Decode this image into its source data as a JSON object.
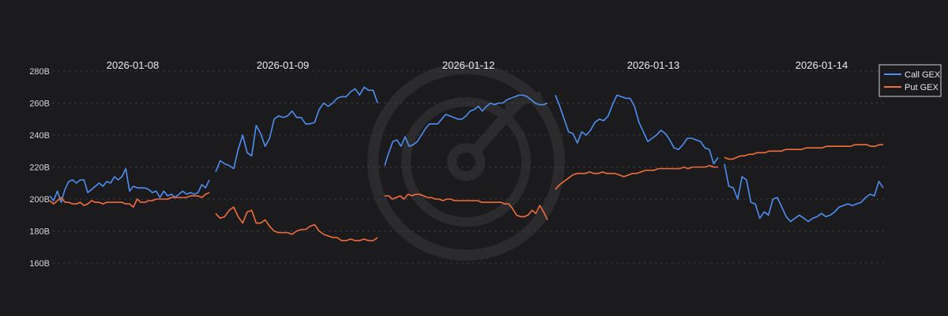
{
  "chart_data": {
    "type": "line",
    "xlabel": "",
    "ylabel": "",
    "ylim": [
      160,
      280
    ],
    "yticks": [
      160,
      180,
      200,
      220,
      240,
      260,
      280
    ],
    "ytick_labels": [
      "160B",
      "180B",
      "200B",
      "220B",
      "240B",
      "260B",
      "280B"
    ],
    "grid": "horizontal dashed",
    "legend": "top-right",
    "days": [
      {
        "label": "2026-01-08",
        "series": [
          {
            "name": "Call GEX",
            "values": [
              202,
              199,
              205,
              198,
              206,
              211,
              212,
              210,
              212,
              212,
              204,
              206,
              208,
              210,
              208,
              211,
              210,
              214,
              212,
              214,
              219,
              205,
              208,
              207,
              207,
              207,
              206,
              204,
              205,
              201,
              205,
              202,
              203,
              201,
              203,
              205,
              203,
              204,
              203,
              204,
              209,
              207,
              212
            ]
          },
          {
            "name": "Put GEX",
            "values": [
              199,
              197,
              199,
              201,
              198,
              198,
              197,
              197,
              198,
              196,
              197,
              199,
              198,
              198,
              197,
              198,
              198,
              198,
              198,
              198,
              197,
              197,
              195,
              200,
              198,
              198,
              199,
              199,
              200,
              200,
              200,
              200,
              201,
              201,
              201,
              201,
              201,
              202,
              202,
              202,
              201,
              203,
              204
            ]
          }
        ]
      },
      {
        "label": "2026-01-09",
        "series": [
          {
            "name": "Call GEX",
            "values": [
              217,
              224,
              222,
              221,
              219,
              231,
              240,
              229,
              227,
              246,
              241,
              233,
              238,
              250,
              252,
              251,
              252,
              255,
              251,
              251,
              247,
              247,
              248,
              256,
              260,
              258,
              260,
              263,
              264,
              264,
              267,
              269,
              265,
              270,
              268,
              268,
              260
            ]
          },
          {
            "name": "Put GEX",
            "values": [
              191,
              188,
              189,
              193,
              195,
              189,
              185,
              192,
              193,
              185,
              185,
              187,
              183,
              180,
              179,
              179,
              179,
              178,
              180,
              181,
              181,
              183,
              184,
              180,
              178,
              177,
              176,
              176,
              174,
              174,
              175,
              174,
              174,
              175,
              174,
              174,
              176
            ]
          }
        ]
      },
      {
        "label": "2026-01-12",
        "series": [
          {
            "name": "Call GEX",
            "values": [
              221,
              229,
              236,
              237,
              233,
              239,
              233,
              234,
              236,
              240,
              244,
              247,
              247,
              247,
              250,
              253,
              252,
              251,
              250,
              250,
              252,
              255,
              256,
              258,
              255,
              258,
              260,
              259,
              260,
              260,
              262,
              263,
              264,
              265,
              265,
              264,
              262,
              260,
              259,
              259,
              260
            ]
          },
          {
            "name": "Put GEX",
            "values": [
              202,
              202,
              200,
              201,
              202,
              200,
              203,
              202,
              203,
              203,
              202,
              201,
              201,
              200,
              200,
              199,
              200,
              200,
              199,
              199,
              199,
              199,
              199,
              199,
              199,
              198,
              198,
              198,
              198,
              198,
              198,
              197,
              197,
              194,
              190,
              189,
              189,
              190,
              193,
              191,
              196,
              192,
              187
            ]
          }
        ]
      },
      {
        "label": "2026-01-13",
        "series": [
          {
            "name": "Call GEX",
            "values": [
              265,
              258,
              250,
              242,
              241,
              235,
              242,
              240,
              243,
              248,
              250,
              249,
              252,
              259,
              265,
              264,
              263,
              263,
              258,
              248,
              242,
              236,
              238,
              240,
              243,
              241,
              237,
              232,
              231,
              234,
              238,
              238,
              237,
              236,
              232,
              231,
              222,
              226
            ]
          },
          {
            "name": "Put GEX",
            "values": [
              206,
              209,
              211,
              213,
              215,
              216,
              216,
              216,
              217,
              216,
              216,
              217,
              216,
              216,
              216,
              215,
              214,
              215,
              216,
              216,
              217,
              218,
              218,
              218,
              219,
              219,
              219,
              219,
              219,
              219,
              220,
              219,
              220,
              220,
              220,
              220,
              221,
              220,
              220
            ]
          }
        ]
      },
      {
        "label": "2026-01-14",
        "series": [
          {
            "name": "Call GEX",
            "values": [
              222,
              208,
              207,
              200,
              214,
              212,
              198,
              197,
              188,
              192,
              190,
              200,
              201,
              195,
              189,
              186,
              188,
              190,
              188,
              186,
              188,
              189,
              191,
              189,
              190,
              192,
              195,
              196,
              197,
              196,
              197,
              198,
              201,
              203,
              202,
              211,
              207
            ]
          },
          {
            "name": "Put GEX",
            "values": [
              226,
              225,
              225,
              226,
              227,
              227,
              228,
              228,
              229,
              229,
              229,
              230,
              230,
              230,
              230,
              231,
              231,
              231,
              231,
              231,
              232,
              232,
              232,
              232,
              232,
              233,
              233,
              233,
              233,
              233,
              233,
              233,
              234,
              234,
              234,
              234,
              233,
              233,
              234,
              234
            ]
          }
        ]
      }
    ],
    "series_meta": [
      {
        "name": "Call GEX",
        "color": "#4f8ef0"
      },
      {
        "name": "Put GEX",
        "color": "#f26d3d"
      }
    ]
  }
}
